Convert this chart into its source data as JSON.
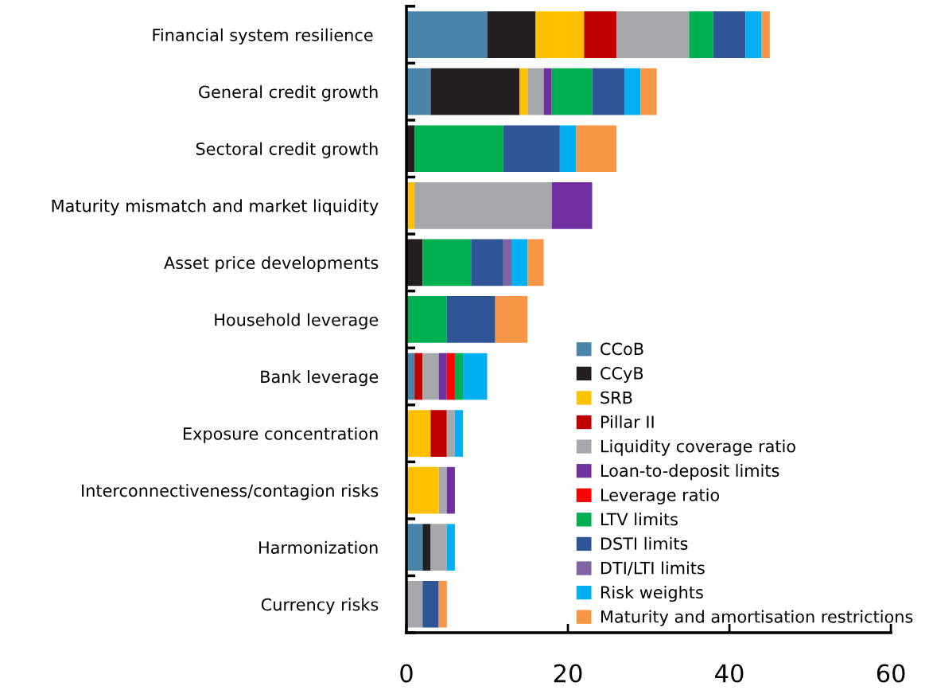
{
  "chart_data": {
    "type": "bar",
    "orientation": "horizontal",
    "stacked": true,
    "categories": [
      "Financial system resilience ",
      "General credit growth",
      "Sectoral credit growth",
      "Maturity mismatch and market liquidity",
      "Asset price developments",
      "Household leverage",
      "Bank leverage",
      "Exposure concentration",
      "Interconnectiveness/contagion risks",
      "Harmonization",
      "Currency risks"
    ],
    "series": [
      {
        "name": "CCoB",
        "color": "#4a84a8",
        "values": [
          10,
          3,
          0,
          0,
          0,
          0,
          1,
          0,
          0,
          2,
          0
        ]
      },
      {
        "name": "CCyB",
        "color": "#231f20",
        "values": [
          6,
          11,
          1,
          0,
          2,
          0,
          0,
          0,
          0,
          1,
          0
        ]
      },
      {
        "name": "SRB",
        "color": "#ffc000",
        "values": [
          6,
          1,
          0,
          1,
          0,
          0,
          0,
          3,
          4,
          0,
          0
        ]
      },
      {
        "name": "Pillar II",
        "color": "#c00000",
        "values": [
          4,
          0,
          0,
          0,
          0,
          0,
          1,
          2,
          0,
          0,
          0
        ]
      },
      {
        "name": "Liquidity coverage ratio",
        "color": "#a7a8ab",
        "values": [
          9,
          2,
          0,
          17,
          0,
          0,
          2,
          1,
          1,
          2,
          2
        ]
      },
      {
        "name": "Loan-to-deposit limits",
        "color": "#7030a0",
        "values": [
          0,
          1,
          0,
          5,
          0,
          0,
          1,
          0,
          1,
          0,
          0
        ]
      },
      {
        "name": "Leverage ratio",
        "color": "#ff0000",
        "values": [
          0,
          0,
          0,
          0,
          0,
          0,
          1,
          0,
          0,
          0,
          0
        ]
      },
      {
        "name": "LTV limits",
        "color": "#00b050",
        "values": [
          3,
          5,
          11,
          0,
          6,
          5,
          1,
          0,
          0,
          0,
          0
        ]
      },
      {
        "name": "DSTI limits",
        "color": "#2f5597",
        "values": [
          4,
          4,
          7,
          0,
          4,
          6,
          0,
          0,
          0,
          0,
          2
        ]
      },
      {
        "name": "DTI/LTI limits",
        "color": "#8064a2",
        "values": [
          0,
          0,
          0,
          0,
          1,
          0,
          0,
          0,
          0,
          0,
          0
        ]
      },
      {
        "name": "Risk weights",
        "color": "#00b0f0",
        "values": [
          2,
          2,
          2,
          0,
          2,
          0,
          3,
          1,
          0,
          1,
          0
        ]
      },
      {
        "name": "Maturity and amortisation restrictions",
        "color": "#f79646",
        "values": [
          1,
          2,
          5,
          0,
          2,
          4,
          0,
          0,
          0,
          0,
          1
        ]
      }
    ],
    "xlim": [
      0,
      60
    ],
    "xticks": [
      0,
      20,
      40,
      60
    ],
    "grid": false,
    "legend": "bottom right"
  }
}
